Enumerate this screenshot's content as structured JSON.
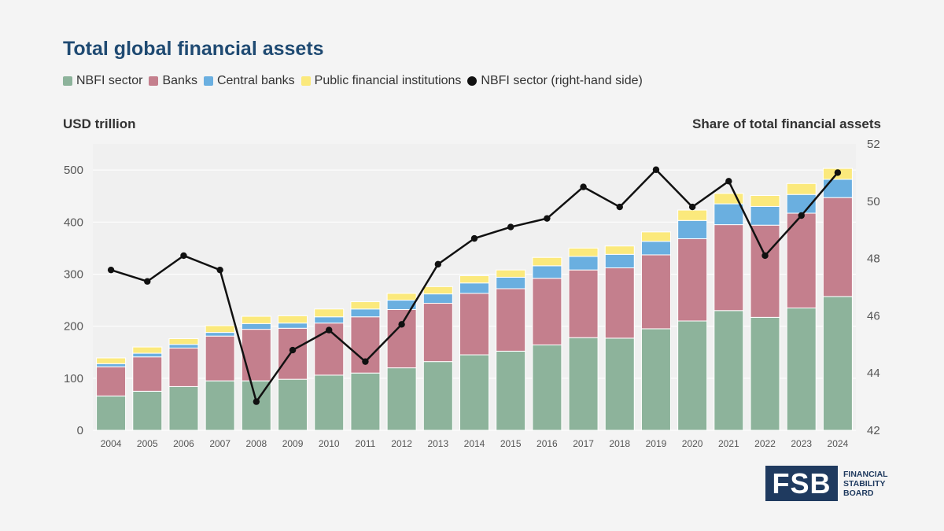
{
  "title": "Total global financial assets",
  "legend": [
    {
      "label": "NBFI sector",
      "color": "#8db39b",
      "shape": "square"
    },
    {
      "label": "Banks",
      "color": "#c47f8d",
      "shape": "square"
    },
    {
      "label": "Central banks",
      "color": "#6aafe0",
      "shape": "square"
    },
    {
      "label": "Public financial institutions",
      "color": "#fbe97c",
      "shape": "square"
    },
    {
      "label": "NBFI sector (right-hand side)",
      "color": "#111111",
      "shape": "dot"
    }
  ],
  "left_axis_title": "USD trillion",
  "right_axis_title": "Share of total financial assets",
  "logo": {
    "mark": "FSB",
    "line1": "FINANCIAL",
    "line2": "STABILITY",
    "line3": "BOARD"
  },
  "chart_data": {
    "type": "bar",
    "stacked": true,
    "categories": [
      "2004",
      "2005",
      "2006",
      "2007",
      "2008",
      "2009",
      "2010",
      "2011",
      "2012",
      "2013",
      "2014",
      "2015",
      "2016",
      "2017",
      "2018",
      "2019",
      "2020",
      "2021",
      "2022",
      "2023",
      "2024"
    ],
    "series": [
      {
        "name": "NBFI sector",
        "color": "#8db39b",
        "values": [
          66,
          75,
          84,
          95,
          95,
          98,
          106,
          110,
          120,
          132,
          145,
          152,
          164,
          178,
          177,
          195,
          210,
          230,
          217,
          235,
          257
        ]
      },
      {
        "name": "Banks",
        "color": "#c47f8d",
        "values": [
          56,
          66,
          74,
          86,
          99,
          98,
          100,
          108,
          112,
          112,
          118,
          120,
          128,
          130,
          135,
          142,
          158,
          165,
          177,
          182,
          190
        ]
      },
      {
        "name": "Central banks",
        "color": "#6aafe0",
        "values": [
          6,
          7,
          7,
          7,
          11,
          10,
          12,
          15,
          18,
          18,
          20,
          22,
          24,
          26,
          26,
          26,
          35,
          40,
          36,
          36,
          35
        ]
      },
      {
        "name": "Public financial institutions",
        "color": "#fbe97c",
        "values": [
          11,
          12,
          11,
          13,
          14,
          14,
          15,
          14,
          13,
          14,
          14,
          14,
          16,
          16,
          16,
          18,
          20,
          20,
          21,
          21,
          21
        ]
      }
    ],
    "line_series": {
      "name": "NBFI sector (right-hand side)",
      "color": "#111111",
      "axis": "right",
      "values": [
        47.6,
        47.2,
        48.1,
        47.6,
        43.0,
        44.8,
        45.5,
        44.4,
        45.7,
        47.8,
        48.7,
        49.1,
        49.4,
        50.5,
        49.8,
        51.1,
        49.8,
        50.7,
        48.1,
        49.5,
        51.0
      ]
    },
    "ylim": [
      0,
      550
    ],
    "yticks": [
      0,
      100,
      200,
      300,
      400,
      500
    ],
    "y2lim": [
      42,
      52
    ],
    "y2ticks": [
      42,
      44,
      46,
      48,
      50,
      52
    ],
    "ylabel": "USD trillion",
    "y2label": "Share of total financial assets",
    "grid": true
  }
}
